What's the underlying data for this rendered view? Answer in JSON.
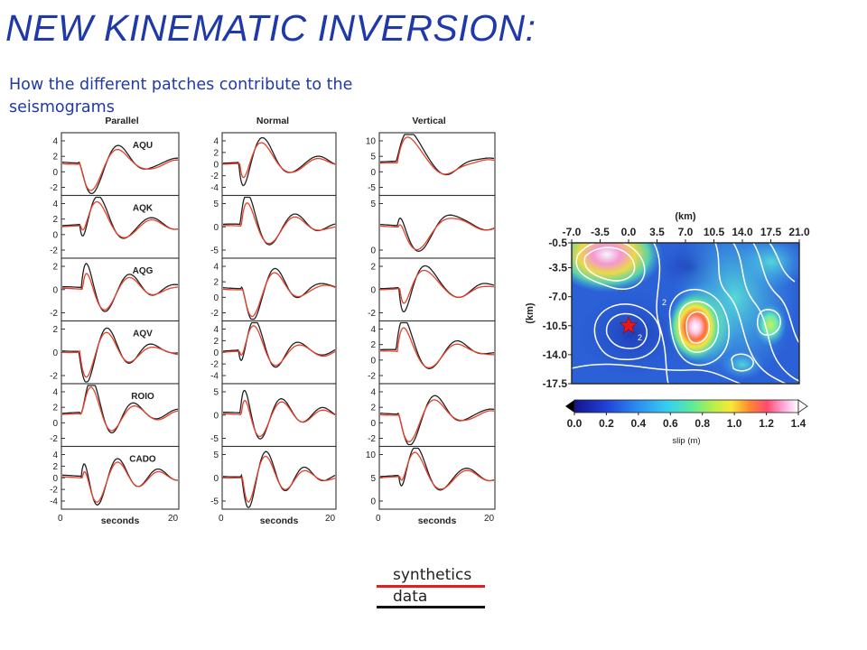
{
  "slide": {
    "title": "NEW KINEMATIC INVERSION:",
    "subtitle": "How the different patches contribute to the seismograms"
  },
  "legend": {
    "synthetics": {
      "label": "synthetics",
      "color": "#e02020"
    },
    "data": {
      "label": "data",
      "color": "#111111"
    }
  },
  "colors": {
    "synthetics": "#e8402a",
    "data": "#222222",
    "contour": "#ffffff",
    "epicenter": "#e81818"
  },
  "chart_data": [
    {
      "type": "line",
      "title": "",
      "xlabel": "seconds",
      "x_ticks": [
        "0",
        "20"
      ],
      "components": [
        "Parallel",
        "Normal",
        "Vertical"
      ],
      "stations": [
        "AQU",
        "AQK",
        "AQG",
        "AQV",
        "ROIO",
        "CADO"
      ],
      "series": [
        {
          "name": "synthetics"
        },
        {
          "name": "data"
        }
      ],
      "y_ticks": {
        "Parallel": [
          [
            "4",
            "2",
            "0",
            "-2"
          ],
          [
            "4",
            "2",
            "0",
            "-2"
          ],
          [
            "2",
            "0",
            "-2"
          ],
          [
            "2",
            "0",
            "-2"
          ],
          [
            "4",
            "2",
            "0",
            "-2"
          ],
          [
            "4",
            "2",
            "0",
            "-2",
            "-4"
          ]
        ],
        "Normal": [
          [
            "4",
            "2",
            "0",
            "-2",
            "-4"
          ],
          [
            "5",
            "0",
            "-5"
          ],
          [
            "4",
            "2",
            "0",
            "-2"
          ],
          [
            "4",
            "2",
            "0",
            "-2",
            "-4"
          ],
          [
            "5",
            "0",
            "-5"
          ],
          [
            "5",
            "0",
            "-5"
          ]
        ],
        "Vertical": [
          [
            "10",
            "5",
            "0",
            "-5"
          ],
          [
            "5",
            "0"
          ],
          [
            "2",
            "0",
            "-2"
          ],
          [
            "4",
            "2",
            "0",
            "-2"
          ],
          [
            "4",
            "2",
            "0",
            "-2"
          ],
          [
            "10",
            "5",
            "0"
          ]
        ]
      }
    },
    {
      "type": "heatmap",
      "title": "",
      "xlabel": "(km)",
      "ylabel": "(km)",
      "x_ticks": [
        "-7.0",
        "-3.5",
        "0.0",
        "3.5",
        "7.0",
        "10.5",
        "14.0",
        "17.5",
        "21.0"
      ],
      "y_ticks": [
        "-0.5",
        "-3.5",
        "-7.0",
        "-10.5",
        "-14.0",
        "-17.5"
      ],
      "colorbar": {
        "label": "slip (m)",
        "ticks": [
          "0.0",
          "0.2",
          "0.4",
          "0.6",
          "0.8",
          "1.0",
          "1.2",
          "1.4"
        ],
        "range": [
          0.0,
          1.4
        ]
      },
      "contour_label": "2",
      "hypocenter": {
        "x": 0.0,
        "y": -10.5
      }
    }
  ]
}
